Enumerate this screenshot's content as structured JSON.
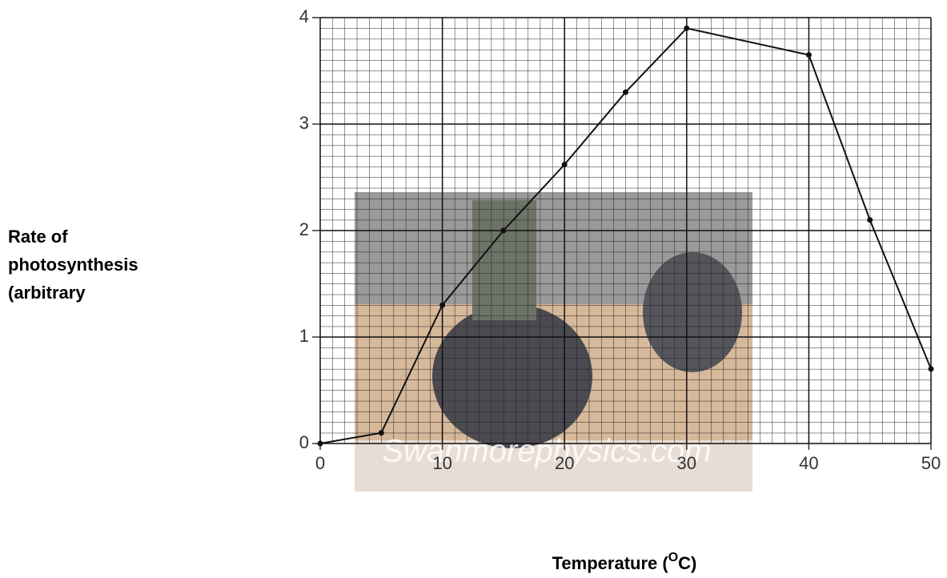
{
  "chart_data": {
    "type": "line",
    "y_label_lines": [
      "Rate of",
      "photosynthesis",
      "(arbitrary"
    ],
    "x_label_parts": [
      "Temperature (",
      "O",
      "C)"
    ],
    "watermark": "Swanmorephysics.com",
    "x": [
      0,
      5,
      10,
      15,
      20,
      25,
      30,
      40,
      45,
      50
    ],
    "series": [
      {
        "color": "#111111",
        "values": [
          0,
          0.1,
          1.3,
          2.0,
          2.62,
          3.3,
          3.9,
          3.65,
          2.1,
          0.7
        ]
      }
    ],
    "xlim": [
      0,
      50
    ],
    "xticks": [
      0,
      10,
      20,
      30,
      40,
      50
    ],
    "ylim": [
      0,
      4
    ],
    "yticks": [
      0,
      1,
      2,
      3,
      4
    ],
    "grid": true
  }
}
